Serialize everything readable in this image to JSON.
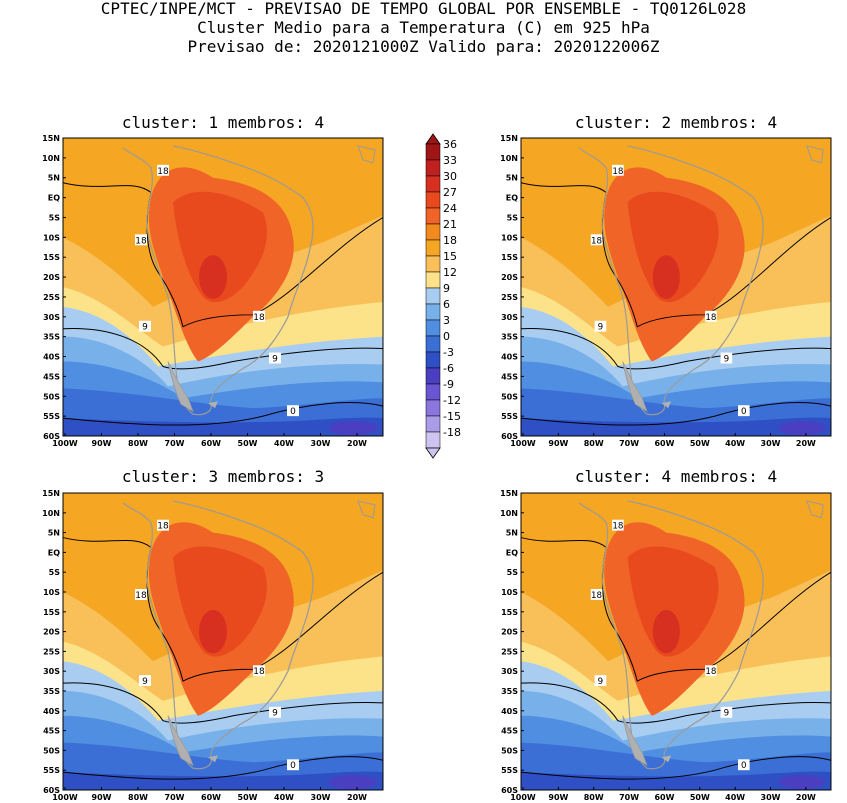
{
  "header": {
    "line1": "CPTEC/INPE/MCT - PREVISAO DE TEMPO GLOBAL POR ENSEMBLE - TQ0126L028",
    "line2": "Cluster Medio para a Temperatura (C) em 925 hPa",
    "line3": "Previsao de: 2020121000Z   Valido para: 2020122006Z"
  },
  "axes": {
    "lat_labels": [
      "15N",
      "10N",
      "5N",
      "EQ",
      "5S",
      "10S",
      "15S",
      "20S",
      "25S",
      "30S",
      "35S",
      "40S",
      "45S",
      "50S",
      "55S",
      "60S"
    ],
    "lon_labels": [
      "100W",
      "90W",
      "80W",
      "70W",
      "60W",
      "50W",
      "40W",
      "30W",
      "20W"
    ]
  },
  "panels": [
    {
      "title": "cluster: 1   membros: 4",
      "contour_labels": [
        "18",
        "18",
        "18",
        "9",
        "9",
        "0"
      ]
    },
    {
      "title": "cluster: 2   membros: 4",
      "contour_labels": [
        "18",
        "18",
        "18",
        "9",
        "9",
        "0"
      ]
    },
    {
      "title": "cluster: 3   membros: 3",
      "contour_labels": [
        "18",
        "18",
        "18",
        "9",
        "9",
        "0"
      ]
    },
    {
      "title": "cluster: 4   membros: 4",
      "contour_labels": [
        "18",
        "18",
        "18",
        "9",
        "9",
        "0"
      ]
    }
  ],
  "colorbar": {
    "labels": [
      "36",
      "33",
      "30",
      "27",
      "24",
      "21",
      "18",
      "15",
      "12",
      "9",
      "6",
      "3",
      "0",
      "-3",
      "-6",
      "-9",
      "-12",
      "-15",
      "-18"
    ],
    "colors": [
      "#a01616",
      "#c02020",
      "#d83020",
      "#e84a1e",
      "#f06428",
      "#f28a1e",
      "#f5a623",
      "#f9c05a",
      "#fce38a",
      "#a9cdf0",
      "#78b0ea",
      "#4f8ee0",
      "#3b6fd6",
      "#2f4fc4",
      "#4a3fc0",
      "#6a55d2",
      "#8a76de",
      "#aa9ce6",
      "#cfc4f0"
    ]
  },
  "colors": {
    "hot": "#e84a1e",
    "warm": "#f5a623",
    "cool": "#a9cdf0",
    "cold": "#3b6fd6"
  }
}
